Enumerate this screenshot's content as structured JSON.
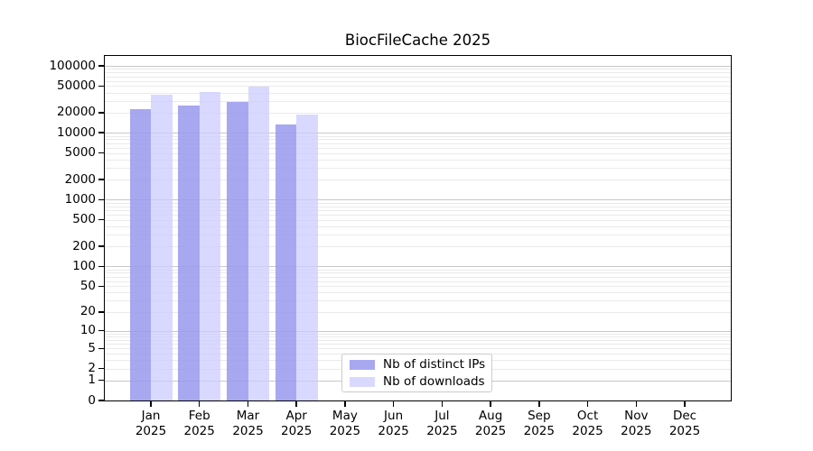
{
  "figure": {
    "background": "#ffffff"
  },
  "chart_data": {
    "type": "bar",
    "title": "BiocFileCache 2025",
    "xlabel": "",
    "ylabel": "",
    "yscale": "log10(value+1)",
    "ylim": [
      0,
      145000
    ],
    "grid": {
      "orientation": "horizontal",
      "major_color": "#c8c8c8",
      "minor_color": "#eaeaea"
    },
    "categories": [
      "Jan 2025",
      "Feb 2025",
      "Mar 2025",
      "Apr 2025",
      "May 2025",
      "Jun 2025",
      "Jul 2025",
      "Aug 2025",
      "Sep 2025",
      "Oct 2025",
      "Nov 2025",
      "Dec 2025"
    ],
    "categories_lines": [
      {
        "month": "Jan",
        "year": "2025"
      },
      {
        "month": "Feb",
        "year": "2025"
      },
      {
        "month": "Mar",
        "year": "2025"
      },
      {
        "month": "Apr",
        "year": "2025"
      },
      {
        "month": "May",
        "year": "2025"
      },
      {
        "month": "Jun",
        "year": "2025"
      },
      {
        "month": "Jul",
        "year": "2025"
      },
      {
        "month": "Aug",
        "year": "2025"
      },
      {
        "month": "Sep",
        "year": "2025"
      },
      {
        "month": "Oct",
        "year": "2025"
      },
      {
        "month": "Nov",
        "year": "2025"
      },
      {
        "month": "Dec",
        "year": "2025"
      }
    ],
    "series": [
      {
        "name": "Nb of distinct IPs",
        "slug": "distinct-ips",
        "color": "#9999ee",
        "fill_alpha": 0.85,
        "values": [
          22700,
          25200,
          29100,
          13200,
          null,
          null,
          null,
          null,
          null,
          null,
          null,
          null
        ]
      },
      {
        "name": "Nb of downloads",
        "slug": "downloads",
        "color": "#ccccff",
        "fill_alpha": 0.75,
        "values": [
          37000,
          41000,
          49000,
          18900,
          null,
          null,
          null,
          null,
          null,
          null,
          null,
          null
        ]
      }
    ],
    "yticks": {
      "values": [
        0,
        1,
        2,
        5,
        10,
        20,
        50,
        100,
        200,
        500,
        1000,
        2000,
        5000,
        10000,
        20000,
        50000,
        100000
      ],
      "labels": [
        "0",
        "1",
        "2",
        "5",
        "10",
        "20",
        "50",
        "100",
        "200",
        "500",
        "1000",
        "2000",
        "5000",
        "10000",
        "20000",
        "50000",
        "100000"
      ]
    },
    "legend": {
      "position": "inside-bottom-center"
    }
  }
}
